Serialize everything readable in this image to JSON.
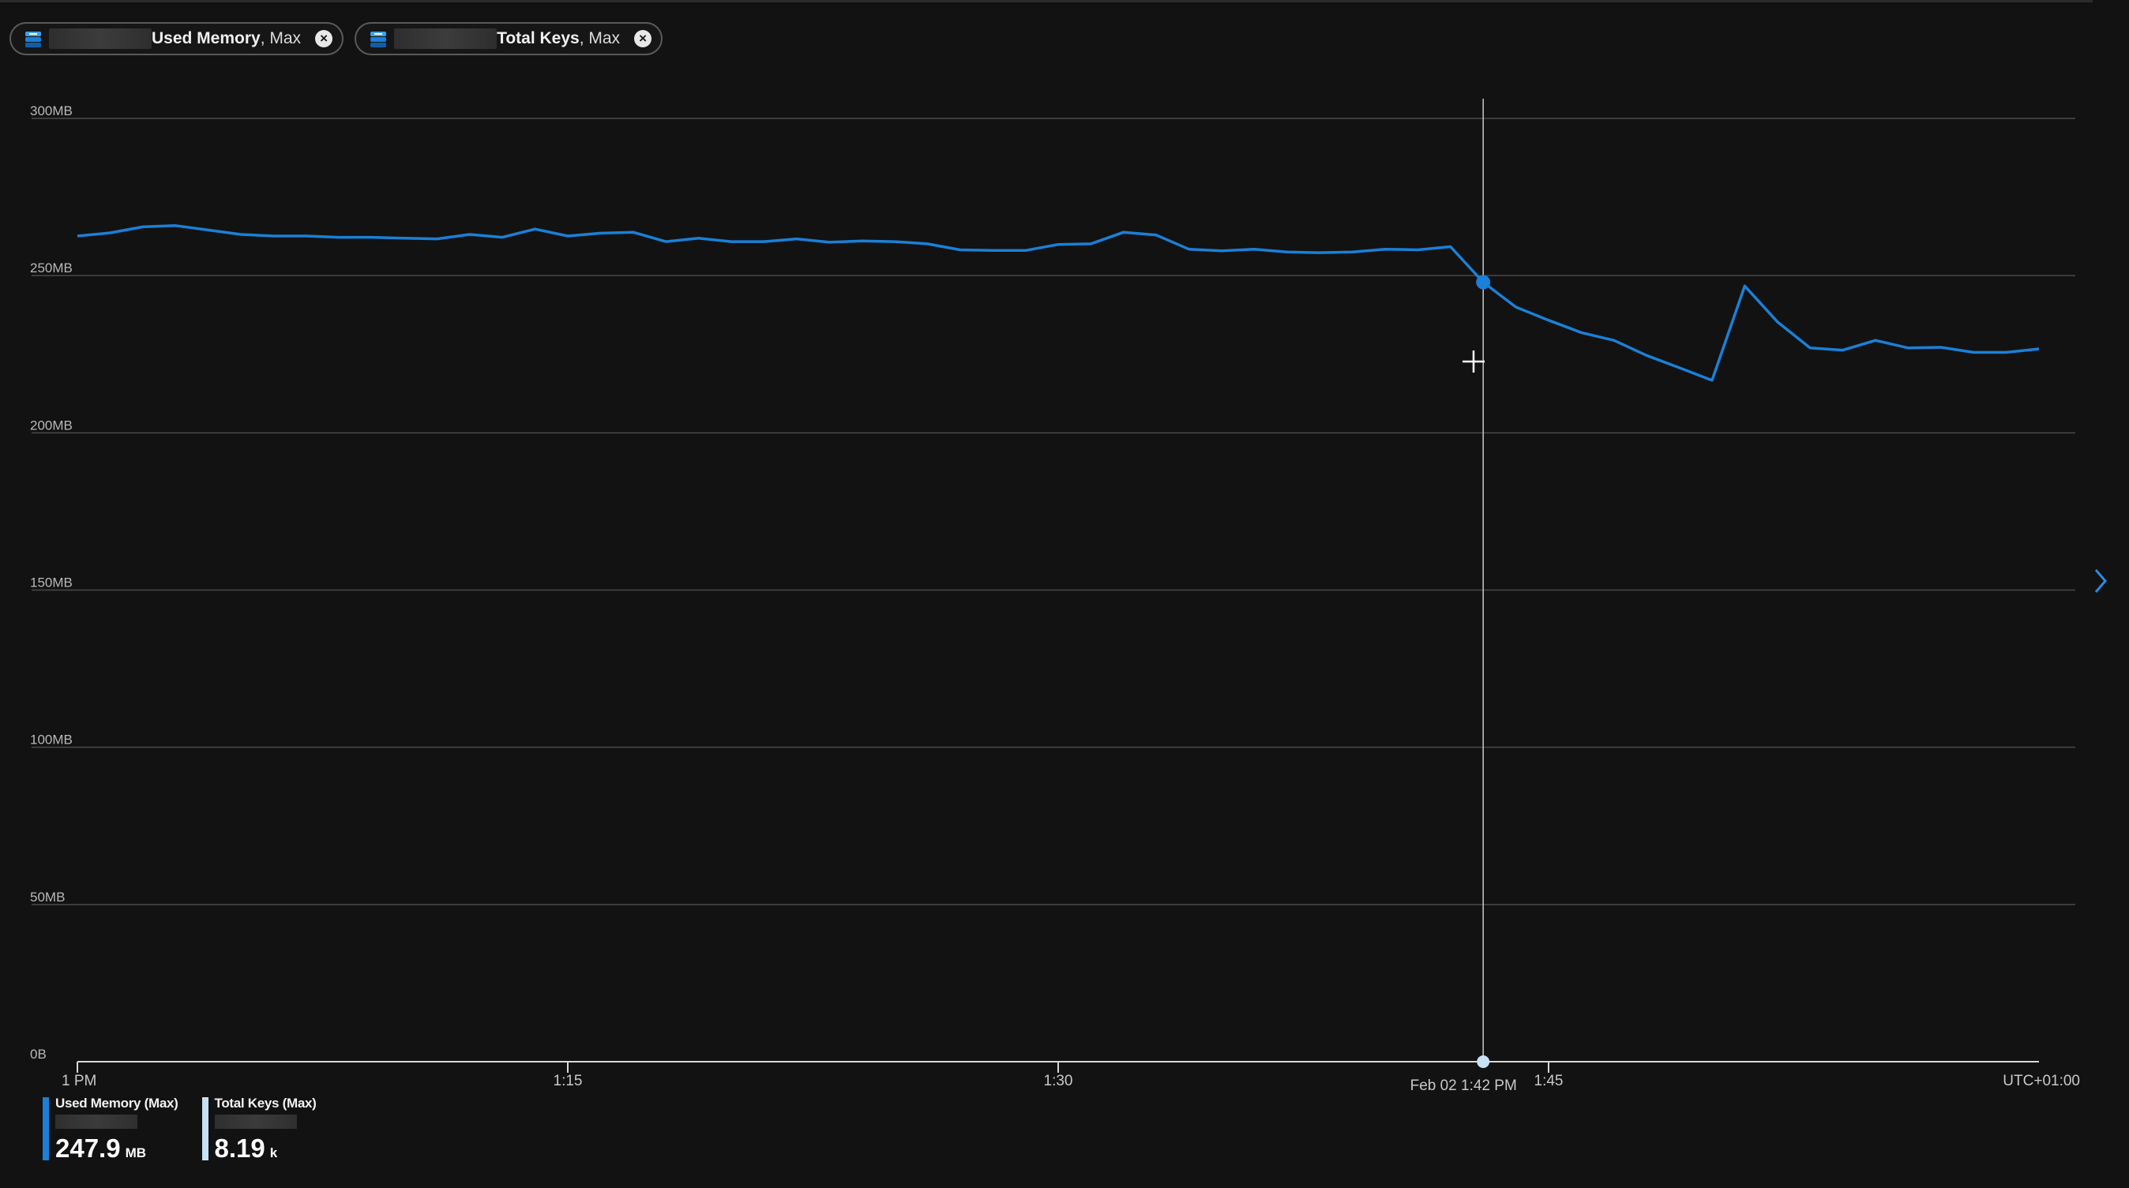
{
  "pills": [
    {
      "metric": "Used Memory",
      "aggregation": ", Max"
    },
    {
      "metric": "Total Keys",
      "aggregation": ", Max"
    }
  ],
  "colors": {
    "background": "#121212",
    "series_used_memory": "#1a80d8",
    "series_total_keys": "#c7e0f4",
    "gridline": "#4a4a4a",
    "crosshair": "#c8c8c8"
  },
  "icons": {
    "pill_resource": "redis-cache-icon",
    "pill_remove": "close-icon",
    "side_expand": "chevron-right-icon"
  },
  "chart_data": {
    "type": "line",
    "title": "",
    "xlabel": "",
    "ylabel": "",
    "timezone_label": "UTC+01:00",
    "x_tick_labels": [
      {
        "label": "1 PM",
        "minute": 0
      },
      {
        "label": "1:15",
        "minute": 15
      },
      {
        "label": "1:30",
        "minute": 30
      },
      {
        "label": "1:45",
        "minute": 45
      }
    ],
    "x_range_minutes": [
      0,
      60
    ],
    "y_unit": "MB",
    "y_range": [
      0,
      300
    ],
    "y_tick_labels": [
      {
        "label": "300MB",
        "value": 300
      },
      {
        "label": "250MB",
        "value": 250
      },
      {
        "label": "200MB",
        "value": 200
      },
      {
        "label": "150MB",
        "value": 150
      },
      {
        "label": "100MB",
        "value": 100
      },
      {
        "label": "50MB",
        "value": 50
      },
      {
        "label": "0B",
        "value": 0
      }
    ],
    "grid": true,
    "legend_position": "bottom-left",
    "series": [
      {
        "name": "Used Memory (Max)",
        "x_minutes": [
          0,
          1,
          2,
          3,
          4,
          5,
          6,
          7,
          8,
          9,
          10,
          11,
          12,
          13,
          14,
          15,
          16,
          17,
          18,
          19,
          20,
          21,
          22,
          23,
          24,
          25,
          26,
          27,
          28,
          29,
          30,
          31,
          32,
          33,
          34,
          35,
          36,
          37,
          38,
          39,
          40,
          41,
          42,
          43,
          44,
          45,
          46,
          47,
          48,
          49,
          50,
          51,
          52,
          53,
          54,
          55,
          56,
          57,
          58,
          59,
          60
        ],
        "values": [
          262.6,
          263.6,
          265.5,
          265.9,
          264.5,
          263.1,
          262.6,
          262.6,
          262.2,
          262.2,
          261.9,
          261.7,
          263.1,
          262.2,
          264.8,
          262.6,
          263.5,
          263.8,
          260.8,
          261.9,
          260.8,
          260.8,
          261.7,
          260.6,
          261.0,
          260.8,
          260.1,
          258.2,
          258.0,
          258.0,
          259.9,
          260.1,
          263.8,
          262.9,
          258.4,
          257.9,
          258.4,
          257.5,
          257.3,
          257.5,
          258.4,
          258.2,
          259.2,
          247.9,
          240.0,
          235.8,
          231.9,
          229.4,
          224.6,
          220.7,
          216.7,
          246.7,
          235.3,
          227.0,
          226.3,
          229.4,
          227.0,
          227.2,
          225.6,
          225.6,
          226.7
        ]
      }
    ],
    "crosshair": {
      "label": "Feb 02 1:42 PM",
      "minute": 43,
      "value": 247.9
    }
  },
  "legend": [
    {
      "title": "Used Memory (Max)",
      "value": "247.9",
      "unit": "MB"
    },
    {
      "title": "Total Keys (Max)",
      "value": "8.19",
      "unit": "k"
    }
  ]
}
